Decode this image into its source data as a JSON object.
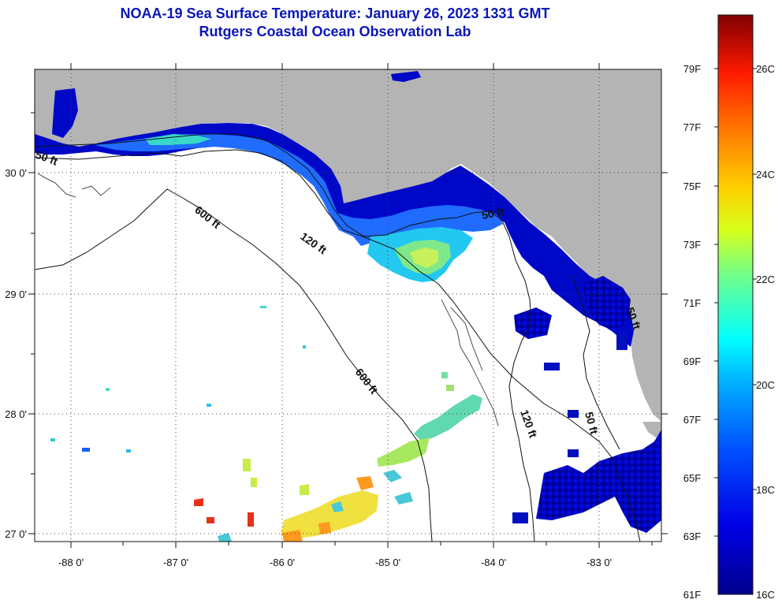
{
  "header": {
    "title": "NOAA-19 Sea Surface Temperature:  January 26, 2023 1331 GMT",
    "subtitle": "Rutgers Coastal Ocean Observation Lab"
  },
  "map": {
    "lon_ticks": [
      "-88 0'",
      "-87 0'",
      "-86 0'",
      "-85 0'",
      "-84 0'",
      "-83 0'"
    ],
    "lat_ticks": [
      "30 0'",
      "29 0'",
      "28 0'",
      "27 0'"
    ],
    "depth_labels": [
      "50 ft",
      "600 ft",
      "120 ft",
      "600 ft",
      "120 ft",
      "50 ft",
      "50 ft",
      "50 ft"
    ]
  },
  "colorbar": {
    "fahrenheit_labels": [
      "79F",
      "77F",
      "75F",
      "73F",
      "71F",
      "69F",
      "67F",
      "65F",
      "63F",
      "61F"
    ],
    "celsius_labels": [
      "26C",
      "24C",
      "22C",
      "20C",
      "18C",
      "16C"
    ]
  },
  "colors": {
    "land": "#b4b4b4",
    "ocean": "#ffffff",
    "title": "#0a17b8"
  }
}
